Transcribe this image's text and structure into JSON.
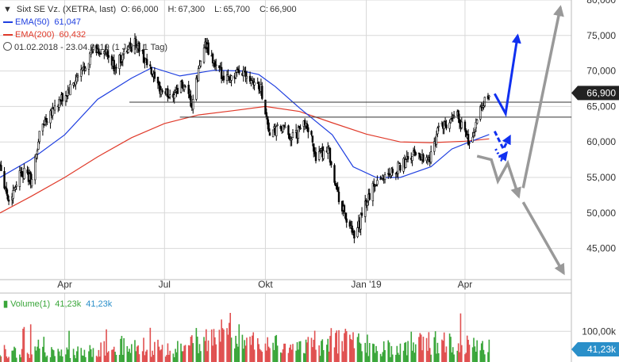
{
  "header": {
    "title": "Sixt SE Vz. (XETRA, last)",
    "ohlc": [
      {
        "label": "O:",
        "value": "66,000"
      },
      {
        "label": "H:",
        "value": "67,300"
      },
      {
        "label": "L:",
        "value": "65,700"
      },
      {
        "label": "C:",
        "value": "66,900"
      }
    ],
    "ema50": {
      "label": "EMA(50)",
      "value": "61,047",
      "color": "#1f3fe0"
    },
    "ema200": {
      "label": "EMA(200)",
      "value": "60,432",
      "color": "#e03a2a"
    },
    "period": "01.02.2018 - 23.04.2019 (1 Jahr, 1 Tag)"
  },
  "volume_header": {
    "label": "Volume(1)",
    "v1": "41,23k",
    "v2": "41,23k"
  },
  "colors": {
    "up": "#3aa63a",
    "down": "#e05050",
    "candle": "#000000",
    "ema50": "#1f3fe0",
    "ema200": "#e03a2a",
    "scenario_blue": "#1030f0",
    "scenario_grey": "#999999",
    "grid": "#d8d8d8",
    "last_label_bg": "#222222"
  },
  "chart_data": [
    {
      "type": "candlestick",
      "title": "Sixt SE Vz. (XETRA, last)",
      "y_ticks": [
        "45,000",
        "50,000",
        "55,000",
        "60,000",
        "65,000",
        "70,000",
        "75,000",
        "80,000"
      ],
      "y_tick_values": [
        45,
        50,
        55,
        60,
        65,
        70,
        75,
        80
      ],
      "ylim": [
        40.6,
        80
      ],
      "x_tick_labels": [
        "Apr",
        "Jul",
        "Okt",
        "Jan '19",
        "Apr"
      ],
      "x_tick_dates": [
        "2018-04-01",
        "2018-07-01",
        "2018-10-01",
        "2019-01-01",
        "2019-04-01"
      ],
      "x_range": [
        "2018-02-01",
        "2019-07-07"
      ],
      "last_price_label": "66,900",
      "last_price": 66.9,
      "anchors": [
        [
          "2018-02-01",
          57.0
        ],
        [
          "2018-02-09",
          51.5
        ],
        [
          "2018-02-20",
          56.0
        ],
        [
          "2018-03-02",
          54.5
        ],
        [
          "2018-03-10",
          62.0
        ],
        [
          "2018-03-20",
          64.5
        ],
        [
          "2018-04-02",
          66.5
        ],
        [
          "2018-04-15",
          69.5
        ],
        [
          "2018-04-27",
          73.0
        ],
        [
          "2018-05-08",
          72.5
        ],
        [
          "2018-05-16",
          70.5
        ],
        [
          "2018-05-28",
          73.0
        ],
        [
          "2018-06-05",
          74.0
        ],
        [
          "2018-06-15",
          71.0
        ],
        [
          "2018-06-25",
          67.5
        ],
        [
          "2018-07-06",
          66.5
        ],
        [
          "2018-07-17",
          68.0
        ],
        [
          "2018-07-26",
          65.0
        ],
        [
          "2018-08-06",
          74.0
        ],
        [
          "2018-08-18",
          70.0
        ],
        [
          "2018-08-30",
          69.0
        ],
        [
          "2018-09-12",
          70.0
        ],
        [
          "2018-09-27",
          67.5
        ],
        [
          "2018-10-05",
          61.0
        ],
        [
          "2018-10-15",
          62.0
        ],
        [
          "2018-10-27",
          60.5
        ],
        [
          "2018-11-07",
          63.0
        ],
        [
          "2018-11-17",
          57.5
        ],
        [
          "2018-11-27",
          59.5
        ],
        [
          "2018-12-05",
          53.0
        ],
        [
          "2018-12-14",
          49.0
        ],
        [
          "2018-12-21",
          46.2
        ],
        [
          "2019-01-01",
          51.5
        ],
        [
          "2019-01-10",
          54.5
        ],
        [
          "2019-01-20",
          55.5
        ],
        [
          "2019-02-01",
          56.5
        ],
        [
          "2019-02-15",
          58.5
        ],
        [
          "2019-02-28",
          57.5
        ],
        [
          "2019-03-08",
          62.5
        ],
        [
          "2019-03-15",
          62.0
        ],
        [
          "2019-03-25",
          64.0
        ],
        [
          "2019-04-05",
          59.5
        ],
        [
          "2019-04-13",
          63.5
        ],
        [
          "2019-04-23",
          66.9
        ]
      ],
      "ema50": [
        [
          "2018-02-01",
          55.0
        ],
        [
          "2018-03-01",
          57.5
        ],
        [
          "2018-04-01",
          61.0
        ],
        [
          "2018-05-01",
          66.0
        ],
        [
          "2018-06-01",
          69.0
        ],
        [
          "2018-06-20",
          70.5
        ],
        [
          "2018-07-15",
          69.3
        ],
        [
          "2018-08-15",
          70.1
        ],
        [
          "2018-09-10",
          70.0
        ],
        [
          "2018-09-25",
          69.5
        ],
        [
          "2018-10-10",
          67.8
        ],
        [
          "2018-11-01",
          64.8
        ],
        [
          "2018-12-01",
          61.0
        ],
        [
          "2018-12-20",
          56.5
        ],
        [
          "2019-01-10",
          55.0
        ],
        [
          "2019-02-01",
          55.0
        ],
        [
          "2019-03-01",
          56.5
        ],
        [
          "2019-03-20",
          59.0
        ],
        [
          "2019-04-05",
          60.0
        ],
        [
          "2019-04-23",
          61.05
        ]
      ],
      "ema200": [
        [
          "2018-02-01",
          50.0
        ],
        [
          "2018-03-01",
          52.3
        ],
        [
          "2018-04-01",
          55.0
        ],
        [
          "2018-05-01",
          57.9
        ],
        [
          "2018-06-01",
          60.6
        ],
        [
          "2018-07-01",
          62.6
        ],
        [
          "2018-08-01",
          63.8
        ],
        [
          "2018-09-01",
          64.4
        ],
        [
          "2018-10-01",
          65.0
        ],
        [
          "2018-11-01",
          64.3
        ],
        [
          "2018-12-01",
          62.7
        ],
        [
          "2019-01-01",
          61.1
        ],
        [
          "2019-02-01",
          60.0
        ],
        [
          "2019-03-01",
          59.9
        ],
        [
          "2019-04-01",
          60.1
        ],
        [
          "2019-04-23",
          60.43
        ]
      ],
      "horizontal_lines": [
        {
          "y": 65.6,
          "from": "2018-05-30"
        },
        {
          "y": 63.5,
          "from": "2018-07-15"
        }
      ],
      "scenarios": [
        {
          "name": "blue-up",
          "style": "solid",
          "color": "#1030f0",
          "points": [
            [
              "2019-04-28",
              66.8
            ],
            [
              "2019-05-08",
              64.0
            ],
            [
              "2019-05-19",
              75.0
            ]
          ]
        },
        {
          "name": "blue-down",
          "style": "dashed",
          "color": "#1030f0",
          "points": [
            [
              "2019-04-28",
              61.5
            ],
            [
              "2019-05-06",
              59.0
            ],
            [
              "2019-05-12",
              60.8
            ]
          ]
        },
        {
          "name": "blue-dotted",
          "style": "dotted",
          "color": "#1030f0",
          "points": [
            [
              "2019-04-29",
              59.0
            ],
            [
              "2019-05-04",
              57.5
            ],
            [
              "2019-05-09",
              58.5
            ]
          ]
        },
        {
          "name": "grey-down",
          "style": "solid",
          "color": "#999999",
          "points": [
            [
              "2019-04-12",
              58.0
            ],
            [
              "2019-04-25",
              57.5
            ],
            [
              "2019-05-01",
              54.5
            ],
            [
              "2019-05-10",
              57.0
            ],
            [
              "2019-05-20",
              52.3
            ]
          ]
        },
        {
          "name": "grey-long-up",
          "style": "solid",
          "color": "#999999",
          "points": [
            [
              "2019-05-24",
              53.5
            ],
            [
              "2019-06-27",
              79.0
            ]
          ]
        },
        {
          "name": "grey-long-down",
          "style": "solid",
          "color": "#999999",
          "points": [
            [
              "2019-05-24",
              51.5
            ],
            [
              "2019-06-30",
              41.5
            ]
          ]
        }
      ]
    },
    {
      "type": "bar",
      "title": "Volume(1)",
      "y_ticks": [
        "100,00k"
      ],
      "y_tick_values": [
        100
      ],
      "ylim": [
        0,
        160
      ],
      "last_value_label": "41,23k",
      "last_value": 41.23,
      "x_range": [
        "2018-02-01",
        "2019-07-07"
      ],
      "profile": [
        [
          "2018-02-01",
          30
        ],
        [
          "2018-04-01",
          25
        ],
        [
          "2018-06-01",
          45
        ],
        [
          "2018-07-20",
          35
        ],
        [
          "2018-08-05",
          80
        ],
        [
          "2018-10-01",
          55
        ],
        [
          "2018-11-01",
          40
        ],
        [
          "2018-12-15",
          60
        ],
        [
          "2019-01-15",
          35
        ],
        [
          "2019-03-01",
          55
        ],
        [
          "2019-04-23",
          40
        ]
      ]
    }
  ]
}
